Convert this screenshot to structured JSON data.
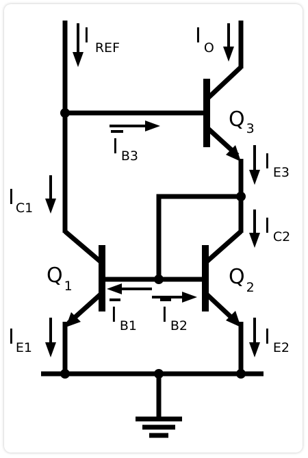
{
  "labels": {
    "iref": {
      "main": "I",
      "sub": "REF"
    },
    "io": {
      "main": "I",
      "sub": "O"
    },
    "ib3": {
      "main": "I",
      "sub": "B3"
    },
    "q3": {
      "main": "Q",
      "sub": "3"
    },
    "ie3": {
      "main": "I",
      "sub": "E3"
    },
    "ic1": {
      "main": "I",
      "sub": "C1"
    },
    "ic2": {
      "main": "I",
      "sub": "C2"
    },
    "q1": {
      "main": "Q",
      "sub": "1"
    },
    "q2": {
      "main": "Q",
      "sub": "2"
    },
    "ib1": {
      "main": "I",
      "sub": "B1"
    },
    "ib2": {
      "main": "I",
      "sub": "B2"
    },
    "ie1": {
      "main": "I",
      "sub": "E1"
    },
    "ie2": {
      "main": "I",
      "sub": "E2"
    }
  }
}
